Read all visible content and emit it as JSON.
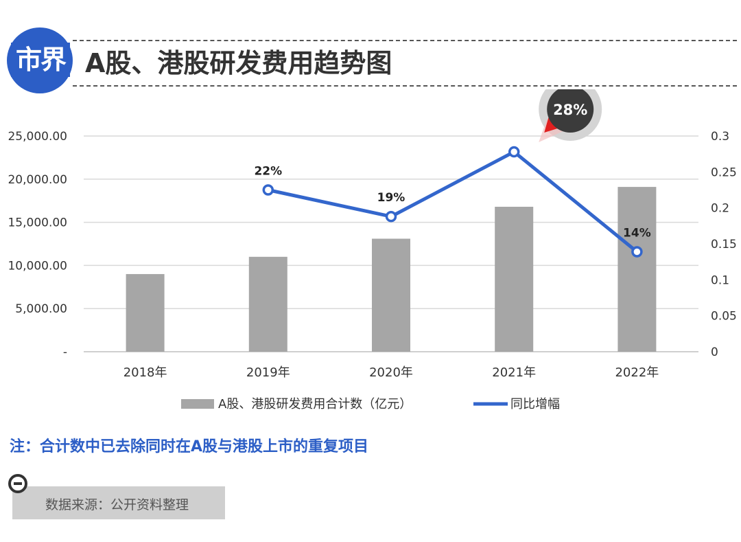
{
  "header": {
    "logo_text": "市界",
    "title": "A股、港股研发费用趋势图"
  },
  "chart_data": {
    "type": "bar",
    "categories": [
      "2018年",
      "2019年",
      "2020年",
      "2021年",
      "2022年"
    ],
    "series": [
      {
        "name": "A股、港股研发费用合计数（亿元）",
        "type": "bar",
        "axis": "left",
        "values": [
          9000,
          11000,
          13100,
          16800,
          19100
        ]
      },
      {
        "name": "同比增幅",
        "type": "line",
        "axis": "right",
        "values": [
          null,
          0.225,
          0.188,
          0.278,
          0.139
        ]
      }
    ],
    "point_labels": [
      "",
      "22%",
      "19%",
      "28%",
      "14%"
    ],
    "highlight_index": 3,
    "ylim_left": [
      0,
      25000
    ],
    "ylim_right": [
      0,
      0.3
    ],
    "left_ticks": [
      "-",
      "5,000.00",
      "10,000.00",
      "15,000.00",
      "20,000.00",
      "25,000.00"
    ],
    "right_ticks": [
      "0",
      "0.05",
      "0.1",
      "0.15",
      "0.2",
      "0.25",
      "0.3"
    ],
    "grid": true,
    "legend_position": "bottom",
    "colors": {
      "bar": "#a6a6a6",
      "line": "#3366cc",
      "highlight": "#3b3b3b",
      "arrow": "#e02020"
    }
  },
  "footer": {
    "note": "注：合计数中已去除同时在A股与港股上市的重复项目",
    "source": "数据来源：公开资料整理"
  }
}
